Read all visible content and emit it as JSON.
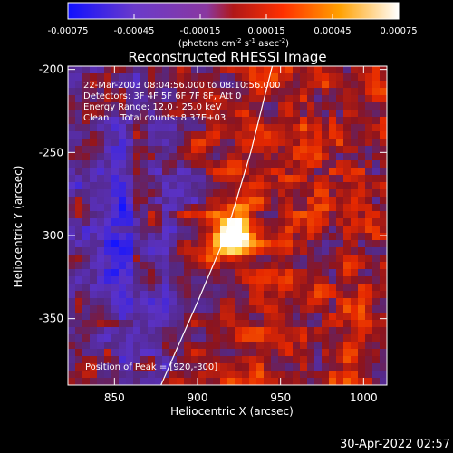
{
  "chart_data": {
    "type": "heatmap",
    "title": "Reconstructed RHESSI Image",
    "xlabel": "Heliocentric X (arcsec)",
    "ylabel": "Heliocentric Y (arcsec)",
    "xlim": [
      822,
      1014
    ],
    "ylim": [
      -390,
      -198
    ],
    "xticks": [
      850,
      900,
      950,
      1000
    ],
    "yticks": [
      -200,
      -250,
      -300,
      -350
    ],
    "colorbar": {
      "ticks": [
        "-0.00075",
        "-0.00045",
        "-0.00015",
        "0.00015",
        "0.00045",
        "0.00075"
      ],
      "range": [
        -0.00075,
        0.00075
      ],
      "unit_line1": "(photons cm",
      "unit_exp1": "-2",
      "unit_line2": " s",
      "unit_exp2": "-1",
      "unit_line3": " asec",
      "unit_exp3": "-2",
      "unit_close": ")",
      "colors": [
        "#2020ff",
        "#8040c0",
        "#b02020",
        "#ff5000",
        "#ffb000",
        "#ffffff"
      ]
    },
    "annotations": [
      "22-Mar-2003 08:04:56.000 to 08:10:56.000",
      "Detectors: 3F 4F 5F 6F 7F 8F, Att 0",
      "Energy Range: 12.0 - 25.0 keV",
      "Clean    Total counts: 8.37E+03"
    ],
    "peak_label": "Position of Peak = [920,-300]",
    "peak": [
      920,
      -300
    ],
    "limb_curve": [
      [
        878,
        -390
      ],
      [
        900,
        -340
      ],
      [
        917,
        -300
      ],
      [
        932,
        -250
      ],
      [
        945,
        -198
      ]
    ]
  },
  "timestamp": "30-Apr-2022 02:57"
}
